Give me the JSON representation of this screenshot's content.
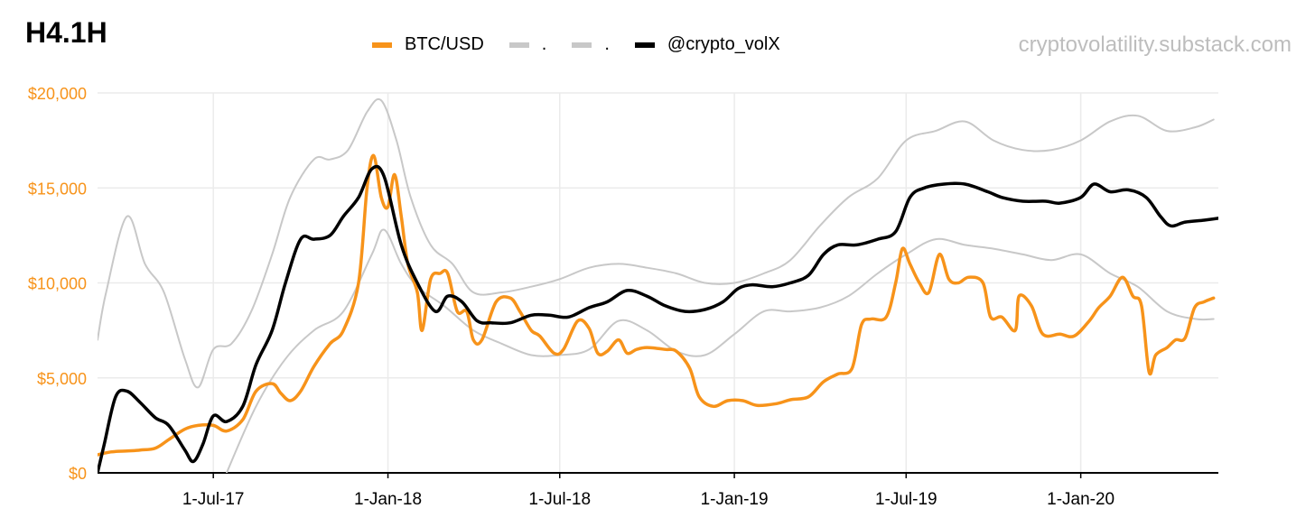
{
  "title": "H4.1H",
  "watermark": "cryptovolatility.substack.com",
  "colors": {
    "btc": "#f7931a",
    "band": "#c8c8c8",
    "model": "#000000",
    "grid": "#ebebeb",
    "axis": "#000000"
  },
  "chart_data": {
    "type": "line",
    "xlabel": "",
    "ylabel": "",
    "ylim": [
      0,
      20000
    ],
    "y_ticks": [
      0,
      5000,
      10000,
      15000,
      20000
    ],
    "y_tick_labels": [
      "$0",
      "$5,000",
      "$10,000",
      "$15,000",
      "$20,000"
    ],
    "x_ticks": [
      "2017-07-01",
      "2018-01-01",
      "2018-07-01",
      "2019-01-01",
      "2019-07-01",
      "2020-01-01"
    ],
    "x_tick_labels": [
      "1-Jul-17",
      "1-Jan-18",
      "1-Jul-18",
      "1-Jan-19",
      "1-Jul-19",
      "1-Jan-20"
    ],
    "xlim": [
      "2017-03-01",
      "2020-05-25"
    ],
    "grid": true,
    "legend_position": "top-center",
    "series": [
      {
        "name": "BTC/USD",
        "color": "#f7931a",
        "points": [
          [
            "2017-03-01",
            950
          ],
          [
            "2017-03-15",
            1100
          ],
          [
            "2017-04-01",
            1150
          ],
          [
            "2017-04-15",
            1200
          ],
          [
            "2017-05-01",
            1300
          ],
          [
            "2017-05-15",
            1750
          ],
          [
            "2017-06-01",
            2300
          ],
          [
            "2017-06-15",
            2500
          ],
          [
            "2017-07-01",
            2500
          ],
          [
            "2017-07-15",
            2200
          ],
          [
            "2017-08-01",
            2800
          ],
          [
            "2017-08-15",
            4300
          ],
          [
            "2017-09-01",
            4700
          ],
          [
            "2017-09-10",
            4200
          ],
          [
            "2017-09-20",
            3800
          ],
          [
            "2017-10-01",
            4300
          ],
          [
            "2017-10-15",
            5600
          ],
          [
            "2017-11-01",
            6800
          ],
          [
            "2017-11-15",
            7500
          ],
          [
            "2017-12-01",
            10000
          ],
          [
            "2017-12-10",
            15000
          ],
          [
            "2017-12-17",
            16700
          ],
          [
            "2017-12-25",
            14500
          ],
          [
            "2018-01-01",
            14000
          ],
          [
            "2018-01-08",
            15700
          ],
          [
            "2018-01-15",
            13500
          ],
          [
            "2018-01-22",
            11000
          ],
          [
            "2018-02-01",
            9500
          ],
          [
            "2018-02-06",
            7500
          ],
          [
            "2018-02-15",
            10200
          ],
          [
            "2018-02-25",
            10500
          ],
          [
            "2018-03-05",
            10500
          ],
          [
            "2018-03-15",
            8500
          ],
          [
            "2018-03-25",
            8500
          ],
          [
            "2018-04-01",
            7000
          ],
          [
            "2018-04-10",
            7000
          ],
          [
            "2018-04-25",
            9000
          ],
          [
            "2018-05-10",
            9200
          ],
          [
            "2018-05-20",
            8500
          ],
          [
            "2018-06-01",
            7500
          ],
          [
            "2018-06-10",
            7200
          ],
          [
            "2018-06-25",
            6300
          ],
          [
            "2018-07-05",
            6500
          ],
          [
            "2018-07-20",
            8000
          ],
          [
            "2018-08-01",
            7600
          ],
          [
            "2018-08-10",
            6300
          ],
          [
            "2018-08-20",
            6400
          ],
          [
            "2018-09-01",
            7000
          ],
          [
            "2018-09-10",
            6300
          ],
          [
            "2018-09-20",
            6500
          ],
          [
            "2018-10-01",
            6600
          ],
          [
            "2018-10-20",
            6500
          ],
          [
            "2018-11-01",
            6400
          ],
          [
            "2018-11-15",
            5500
          ],
          [
            "2018-11-25",
            4000
          ],
          [
            "2018-12-10",
            3500
          ],
          [
            "2018-12-25",
            3800
          ],
          [
            "2019-01-10",
            3800
          ],
          [
            "2019-01-25",
            3550
          ],
          [
            "2019-02-15",
            3650
          ],
          [
            "2019-03-01",
            3850
          ],
          [
            "2019-03-20",
            4000
          ],
          [
            "2019-04-05",
            4800
          ],
          [
            "2019-04-20",
            5200
          ],
          [
            "2019-05-05",
            5500
          ],
          [
            "2019-05-15",
            7800
          ],
          [
            "2019-05-25",
            8100
          ],
          [
            "2019-06-10",
            8200
          ],
          [
            "2019-06-20",
            10000
          ],
          [
            "2019-06-27",
            11800
          ],
          [
            "2019-07-05",
            11000
          ],
          [
            "2019-07-15",
            10000
          ],
          [
            "2019-07-25",
            9500
          ],
          [
            "2019-08-05",
            11500
          ],
          [
            "2019-08-15",
            10200
          ],
          [
            "2019-08-25",
            10000
          ],
          [
            "2019-09-05",
            10300
          ],
          [
            "2019-09-20",
            10000
          ],
          [
            "2019-09-28",
            8200
          ],
          [
            "2019-10-10",
            8200
          ],
          [
            "2019-10-24",
            7500
          ],
          [
            "2019-10-28",
            9300
          ],
          [
            "2019-11-10",
            8800
          ],
          [
            "2019-11-22",
            7300
          ],
          [
            "2019-12-10",
            7300
          ],
          [
            "2019-12-25",
            7200
          ],
          [
            "2020-01-10",
            8000
          ],
          [
            "2020-01-20",
            8700
          ],
          [
            "2020-02-01",
            9300
          ],
          [
            "2020-02-14",
            10300
          ],
          [
            "2020-02-25",
            9300
          ],
          [
            "2020-03-05",
            8800
          ],
          [
            "2020-03-13",
            5300
          ],
          [
            "2020-03-20",
            6200
          ],
          [
            "2020-04-01",
            6600
          ],
          [
            "2020-04-10",
            7000
          ],
          [
            "2020-04-20",
            7100
          ],
          [
            "2020-04-30",
            8700
          ],
          [
            "2020-05-10",
            9000
          ],
          [
            "2020-05-20",
            9200
          ]
        ]
      },
      {
        "name": ".",
        "color": "#c8c8c8",
        "points": [
          [
            "2017-03-01",
            7000
          ],
          [
            "2017-03-10",
            9500
          ],
          [
            "2017-04-01",
            13500
          ],
          [
            "2017-04-20",
            11000
          ],
          [
            "2017-05-10",
            9500
          ],
          [
            "2017-06-01",
            6000
          ],
          [
            "2017-06-15",
            4500
          ],
          [
            "2017-07-01",
            6500
          ],
          [
            "2017-07-20",
            6800
          ],
          [
            "2017-08-10",
            8500
          ],
          [
            "2017-09-01",
            11500
          ],
          [
            "2017-09-20",
            14500
          ],
          [
            "2017-10-15",
            16500
          ],
          [
            "2017-11-01",
            16500
          ],
          [
            "2017-11-20",
            17000
          ],
          [
            "2017-12-10",
            19000
          ],
          [
            "2017-12-25",
            19600
          ],
          [
            "2018-01-10",
            17500
          ],
          [
            "2018-01-25",
            14500
          ],
          [
            "2018-02-15",
            12000
          ],
          [
            "2018-03-10",
            11000
          ],
          [
            "2018-04-01",
            9500
          ],
          [
            "2018-05-01",
            9500
          ],
          [
            "2018-06-01",
            9800
          ],
          [
            "2018-07-01",
            10200
          ],
          [
            "2018-08-01",
            10800
          ],
          [
            "2018-09-01",
            11000
          ],
          [
            "2018-10-01",
            10800
          ],
          [
            "2018-11-01",
            10500
          ],
          [
            "2018-12-01",
            10000
          ],
          [
            "2019-01-01",
            10000
          ],
          [
            "2019-02-01",
            10500
          ],
          [
            "2019-03-01",
            11200
          ],
          [
            "2019-04-01",
            13000
          ],
          [
            "2019-05-01",
            14500
          ],
          [
            "2019-06-01",
            15500
          ],
          [
            "2019-07-01",
            17500
          ],
          [
            "2019-08-01",
            18000
          ],
          [
            "2019-09-01",
            18500
          ],
          [
            "2019-10-01",
            17500
          ],
          [
            "2019-11-01",
            17000
          ],
          [
            "2019-12-01",
            17000
          ],
          [
            "2020-01-01",
            17500
          ],
          [
            "2020-02-01",
            18500
          ],
          [
            "2020-03-01",
            18800
          ],
          [
            "2020-04-01",
            18000
          ],
          [
            "2020-05-01",
            18200
          ],
          [
            "2020-05-20",
            18600
          ]
        ]
      },
      {
        "name": ".",
        "color": "#c8c8c8",
        "points": [
          [
            "2017-07-15",
            0
          ],
          [
            "2017-08-15",
            3500
          ],
          [
            "2017-09-15",
            6000
          ],
          [
            "2017-10-15",
            7500
          ],
          [
            "2017-11-15",
            8500
          ],
          [
            "2017-12-15",
            11500
          ],
          [
            "2017-12-28",
            12800
          ],
          [
            "2018-01-15",
            11000
          ],
          [
            "2018-02-01",
            9800
          ],
          [
            "2018-03-01",
            8800
          ],
          [
            "2018-04-01",
            7500
          ],
          [
            "2018-05-01",
            6800
          ],
          [
            "2018-06-01",
            6200
          ],
          [
            "2018-07-01",
            6200
          ],
          [
            "2018-08-01",
            6500
          ],
          [
            "2018-09-01",
            8000
          ],
          [
            "2018-10-01",
            7500
          ],
          [
            "2018-11-01",
            6400
          ],
          [
            "2018-12-01",
            6200
          ],
          [
            "2019-01-01",
            7300
          ],
          [
            "2019-02-01",
            8500
          ],
          [
            "2019-03-01",
            8500
          ],
          [
            "2019-04-01",
            8700
          ],
          [
            "2019-05-01",
            9300
          ],
          [
            "2019-06-01",
            10500
          ],
          [
            "2019-07-01",
            11500
          ],
          [
            "2019-08-01",
            12300
          ],
          [
            "2019-09-01",
            12000
          ],
          [
            "2019-10-01",
            11800
          ],
          [
            "2019-11-01",
            11500
          ],
          [
            "2019-12-01",
            11200
          ],
          [
            "2020-01-01",
            11500
          ],
          [
            "2020-02-01",
            10500
          ],
          [
            "2020-03-01",
            9800
          ],
          [
            "2020-04-01",
            8500
          ],
          [
            "2020-05-01",
            8100
          ],
          [
            "2020-05-20",
            8100
          ]
        ]
      },
      {
        "name": "@crypto_volX",
        "color": "#000000",
        "points": [
          [
            "2017-03-01",
            0
          ],
          [
            "2017-03-08",
            1500
          ],
          [
            "2017-03-20",
            4000
          ],
          [
            "2017-04-01",
            4300
          ],
          [
            "2017-04-15",
            3700
          ],
          [
            "2017-05-01",
            2900
          ],
          [
            "2017-05-15",
            2500
          ],
          [
            "2017-06-01",
            1200
          ],
          [
            "2017-06-10",
            600
          ],
          [
            "2017-06-20",
            1500
          ],
          [
            "2017-07-01",
            3000
          ],
          [
            "2017-07-15",
            2700
          ],
          [
            "2017-08-01",
            3500
          ],
          [
            "2017-08-15",
            5700
          ],
          [
            "2017-09-01",
            7500
          ],
          [
            "2017-09-15",
            10000
          ],
          [
            "2017-10-01",
            12300
          ],
          [
            "2017-10-15",
            12300
          ],
          [
            "2017-11-01",
            12500
          ],
          [
            "2017-11-15",
            13500
          ],
          [
            "2017-12-01",
            14500
          ],
          [
            "2017-12-15",
            16000
          ],
          [
            "2017-12-28",
            15600
          ],
          [
            "2018-01-15",
            12000
          ],
          [
            "2018-02-01",
            10000
          ],
          [
            "2018-02-20",
            8500
          ],
          [
            "2018-03-05",
            9300
          ],
          [
            "2018-03-20",
            9000
          ],
          [
            "2018-04-05",
            8000
          ],
          [
            "2018-04-20",
            7900
          ],
          [
            "2018-05-10",
            7900
          ],
          [
            "2018-06-01",
            8300
          ],
          [
            "2018-06-20",
            8300
          ],
          [
            "2018-07-10",
            8200
          ],
          [
            "2018-08-01",
            8700
          ],
          [
            "2018-08-20",
            9000
          ],
          [
            "2018-09-10",
            9600
          ],
          [
            "2018-10-01",
            9300
          ],
          [
            "2018-10-20",
            8800
          ],
          [
            "2018-11-10",
            8500
          ],
          [
            "2018-12-01",
            8600
          ],
          [
            "2018-12-20",
            9000
          ],
          [
            "2019-01-05",
            9700
          ],
          [
            "2019-01-20",
            9900
          ],
          [
            "2019-02-10",
            9800
          ],
          [
            "2019-03-01",
            10000
          ],
          [
            "2019-03-20",
            10400
          ],
          [
            "2019-04-05",
            11500
          ],
          [
            "2019-04-20",
            12000
          ],
          [
            "2019-05-10",
            12000
          ],
          [
            "2019-06-01",
            12300
          ],
          [
            "2019-06-20",
            12700
          ],
          [
            "2019-07-05",
            14500
          ],
          [
            "2019-07-20",
            15000
          ],
          [
            "2019-08-10",
            15200
          ],
          [
            "2019-09-01",
            15200
          ],
          [
            "2019-09-25",
            14800
          ],
          [
            "2019-10-10",
            14500
          ],
          [
            "2019-11-01",
            14300
          ],
          [
            "2019-11-25",
            14300
          ],
          [
            "2019-12-10",
            14200
          ],
          [
            "2020-01-01",
            14500
          ],
          [
            "2020-01-15",
            15200
          ],
          [
            "2020-02-01",
            14800
          ],
          [
            "2020-02-20",
            14900
          ],
          [
            "2020-03-10",
            14500
          ],
          [
            "2020-03-25",
            13500
          ],
          [
            "2020-04-05",
            13000
          ],
          [
            "2020-04-20",
            13200
          ],
          [
            "2020-05-10",
            13300
          ],
          [
            "2020-05-25",
            13400
          ]
        ]
      }
    ]
  }
}
